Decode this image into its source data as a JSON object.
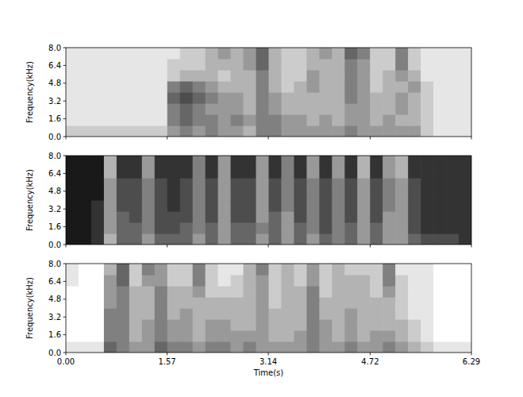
{
  "chart_data": [
    {
      "type": "heatmap",
      "y_label": "Frequency(kHz)",
      "xlim": [
        0,
        6.29
      ],
      "ylim": [
        0,
        8
      ],
      "xticks": [
        {
          "value": 0,
          "label": "0.00"
        },
        1.57,
        3.14,
        4.72,
        6.29
      ],
      "yticks": [
        {
          "value": 0,
          "label": "0.0"
        },
        1.6,
        3.2,
        4.8,
        6.4,
        {
          "value": 8,
          "label": "8.0"
        }
      ],
      "tick_labels": "y",
      "color_range": [
        0,
        10
      ],
      "cells": [
        [
          2,
          1,
          1,
          1,
          1,
          1,
          1,
          1
        ],
        [
          2,
          1,
          1,
          1,
          1,
          1,
          1,
          1
        ],
        [
          2,
          1,
          1,
          1,
          1,
          1,
          1,
          1
        ],
        [
          2,
          1,
          1,
          1,
          1,
          1,
          1,
          1
        ],
        [
          2,
          1,
          1,
          1,
          1,
          1,
          1,
          1
        ],
        [
          2,
          1,
          1,
          1,
          1,
          1,
          1,
          1
        ],
        [
          2,
          1,
          1,
          1,
          1,
          1,
          1,
          1
        ],
        [
          2,
          1,
          1,
          1,
          1,
          1,
          1,
          1
        ],
        [
          4,
          5,
          5,
          6,
          5,
          2,
          2,
          1
        ],
        [
          5,
          6,
          6,
          7,
          6,
          3,
          2,
          2
        ],
        [
          4,
          5,
          5,
          6,
          5,
          3,
          2,
          2
        ],
        [
          5,
          5,
          4,
          5,
          4,
          3,
          3,
          3
        ],
        [
          4,
          4,
          4,
          4,
          3,
          2,
          3,
          4
        ],
        [
          4,
          5,
          4,
          4,
          3,
          3,
          3,
          3
        ],
        [
          3,
          4,
          3,
          3,
          3,
          3,
          4,
          4
        ],
        [
          5,
          5,
          5,
          5,
          5,
          5,
          6,
          6
        ],
        [
          5,
          5,
          4,
          4,
          3,
          3,
          3,
          3
        ],
        [
          4,
          4,
          3,
          3,
          2,
          2,
          2,
          2
        ],
        [
          4,
          4,
          3,
          3,
          3,
          2,
          2,
          2
        ],
        [
          4,
          3,
          3,
          3,
          4,
          4,
          3,
          3
        ],
        [
          4,
          4,
          3,
          3,
          3,
          3,
          3,
          4
        ],
        [
          4,
          3,
          3,
          3,
          3,
          3,
          3,
          3
        ],
        [
          5,
          4,
          4,
          5,
          5,
          5,
          5,
          6
        ],
        [
          4,
          4,
          4,
          4,
          4,
          4,
          4,
          5
        ],
        [
          4,
          3,
          3,
          3,
          2,
          2,
          2,
          2
        ],
        [
          4,
          4,
          3,
          3,
          3,
          3,
          2,
          2
        ],
        [
          4,
          3,
          4,
          4,
          3,
          4,
          5,
          5
        ],
        [
          4,
          3,
          3,
          3,
          4,
          3,
          2,
          2
        ],
        [
          2,
          2,
          2,
          2,
          2,
          1,
          1,
          1
        ],
        [
          1,
          1,
          1,
          1,
          1,
          1,
          1,
          1
        ],
        [
          1,
          1,
          1,
          1,
          1,
          1,
          1,
          1
        ],
        [
          1,
          1,
          1,
          1,
          1,
          1,
          1,
          1
        ]
      ]
    },
    {
      "type": "heatmap",
      "y_label": "Frequency(kHz)",
      "xlim": [
        0,
        6.29
      ],
      "ylim": [
        0,
        8
      ],
      "xticks": [
        {
          "value": 0,
          "label": "0.00"
        },
        1.57,
        3.14,
        4.72,
        6.29
      ],
      "yticks": [
        {
          "value": 0,
          "label": "0.0"
        },
        1.6,
        3.2,
        4.8,
        6.4,
        {
          "value": 8,
          "label": "8.0"
        }
      ],
      "tick_labels": "y",
      "color_range": [
        0,
        10
      ],
      "cells": [
        [
          9,
          9,
          9,
          9,
          9,
          9,
          9,
          9
        ],
        [
          9,
          9,
          9,
          9,
          9,
          9,
          9,
          9
        ],
        [
          8,
          8,
          8,
          8,
          9,
          9,
          9,
          9
        ],
        [
          3,
          4,
          4,
          4,
          4,
          4,
          3,
          3
        ],
        [
          6,
          6,
          6,
          7,
          7,
          7,
          8,
          8
        ],
        [
          6,
          6,
          7,
          7,
          7,
          7,
          8,
          8
        ],
        [
          4,
          5,
          5,
          5,
          5,
          5,
          4,
          4
        ],
        [
          6,
          7,
          7,
          7,
          7,
          7,
          8,
          8
        ],
        [
          6,
          7,
          7,
          8,
          8,
          8,
          8,
          8
        ],
        [
          6,
          6,
          7,
          7,
          7,
          7,
          8,
          8
        ],
        [
          4,
          5,
          5,
          5,
          5,
          5,
          5,
          5
        ],
        [
          6,
          6,
          7,
          7,
          7,
          7,
          8,
          8
        ],
        [
          4,
          4,
          4,
          4,
          4,
          4,
          4,
          4
        ],
        [
          6,
          6,
          7,
          7,
          7,
          7,
          8,
          8
        ],
        [
          6,
          6,
          7,
          7,
          7,
          7,
          8,
          8
        ],
        [
          4,
          5,
          4,
          4,
          4,
          4,
          4,
          4
        ],
        [
          6,
          6,
          6,
          7,
          7,
          7,
          8,
          8
        ],
        [
          4,
          4,
          4,
          5,
          5,
          5,
          5,
          5
        ],
        [
          6,
          6,
          7,
          7,
          7,
          7,
          8,
          8
        ],
        [
          4,
          5,
          5,
          5,
          5,
          5,
          4,
          4
        ],
        [
          6,
          7,
          7,
          7,
          7,
          7,
          8,
          8
        ],
        [
          5,
          5,
          5,
          5,
          5,
          5,
          4,
          4
        ],
        [
          6,
          6,
          7,
          7,
          7,
          7,
          8,
          8
        ],
        [
          4,
          4,
          4,
          4,
          4,
          4,
          3,
          3
        ],
        [
          6,
          6,
          7,
          7,
          7,
          7,
          8,
          8
        ],
        [
          4,
          4,
          4,
          5,
          5,
          5,
          4,
          4
        ],
        [
          4,
          4,
          4,
          4,
          4,
          4,
          3,
          3
        ],
        [
          6,
          7,
          7,
          7,
          7,
          7,
          8,
          8
        ],
        [
          7,
          8,
          8,
          8,
          8,
          8,
          8,
          8
        ],
        [
          7,
          8,
          8,
          8,
          8,
          8,
          8,
          8
        ],
        [
          7,
          8,
          8,
          8,
          8,
          8,
          8,
          8
        ],
        [
          8,
          8,
          8,
          8,
          8,
          8,
          8,
          8
        ]
      ]
    },
    {
      "type": "heatmap",
      "y_label": "Frequency(kHz)",
      "x_label": "Time(s)",
      "xlim": [
        0,
        6.29
      ],
      "ylim": [
        0,
        8
      ],
      "xticks": [
        {
          "value": 0,
          "label": "0.00"
        },
        1.57,
        3.14,
        4.72,
        6.29
      ],
      "yticks": [
        {
          "value": 0,
          "label": "0.0"
        },
        1.6,
        3.2,
        4.8,
        6.4,
        {
          "value": 8,
          "label": "8.0"
        }
      ],
      "tick_labels": true,
      "color_range": [
        0,
        10
      ],
      "cells": [
        [
          1,
          0,
          0,
          0,
          0,
          0,
          1,
          1
        ],
        [
          1,
          0,
          0,
          0,
          0,
          0,
          0,
          0
        ],
        [
          1,
          0,
          0,
          0,
          0,
          0,
          0,
          0
        ],
        [
          6,
          5,
          5,
          5,
          4,
          4,
          4,
          3
        ],
        [
          5,
          5,
          5,
          5,
          5,
          5,
          6,
          6
        ],
        [
          4,
          3,
          3,
          3,
          3,
          3,
          2,
          2
        ],
        [
          4,
          4,
          4,
          3,
          3,
          3,
          4,
          5
        ],
        [
          6,
          5,
          5,
          5,
          5,
          5,
          4,
          4
        ],
        [
          5,
          4,
          4,
          3,
          3,
          3,
          2,
          2
        ],
        [
          5,
          4,
          4,
          4,
          3,
          3,
          2,
          2
        ],
        [
          4,
          3,
          3,
          3,
          3,
          4,
          5,
          5
        ],
        [
          5,
          4,
          4,
          3,
          3,
          2,
          2,
          2
        ],
        [
          5,
          4,
          4,
          3,
          3,
          2,
          1,
          1
        ],
        [
          4,
          4,
          3,
          3,
          3,
          2,
          2,
          1
        ],
        [
          5,
          4,
          3,
          3,
          3,
          3,
          3,
          3
        ],
        [
          4,
          4,
          4,
          4,
          4,
          4,
          4,
          5
        ],
        [
          4,
          3,
          3,
          3,
          2,
          2,
          2,
          2
        ],
        [
          4,
          3,
          3,
          3,
          3,
          3,
          3,
          3
        ],
        [
          4,
          4,
          3,
          3,
          3,
          3,
          2,
          2
        ],
        [
          5,
          5,
          5,
          5,
          5,
          5,
          4,
          4
        ],
        [
          4,
          4,
          4,
          3,
          3,
          2,
          2,
          2
        ],
        [
          4,
          3,
          3,
          3,
          3,
          3,
          3,
          3
        ],
        [
          5,
          4,
          4,
          4,
          3,
          3,
          3,
          2
        ],
        [
          4,
          3,
          3,
          3,
          3,
          3,
          3,
          2
        ],
        [
          4,
          4,
          3,
          3,
          3,
          2,
          2,
          2
        ],
        [
          5,
          4,
          3,
          3,
          3,
          4,
          5,
          5
        ],
        [
          4,
          3,
          3,
          2,
          2,
          2,
          2,
          1
        ],
        [
          3,
          2,
          2,
          1,
          1,
          1,
          1,
          1
        ],
        [
          2,
          1,
          1,
          1,
          1,
          1,
          1,
          1
        ],
        [
          1,
          0,
          0,
          0,
          0,
          0,
          0,
          0
        ],
        [
          1,
          0,
          0,
          0,
          0,
          0,
          0,
          0
        ],
        [
          1,
          0,
          0,
          0,
          0,
          0,
          0,
          0
        ]
      ]
    }
  ]
}
